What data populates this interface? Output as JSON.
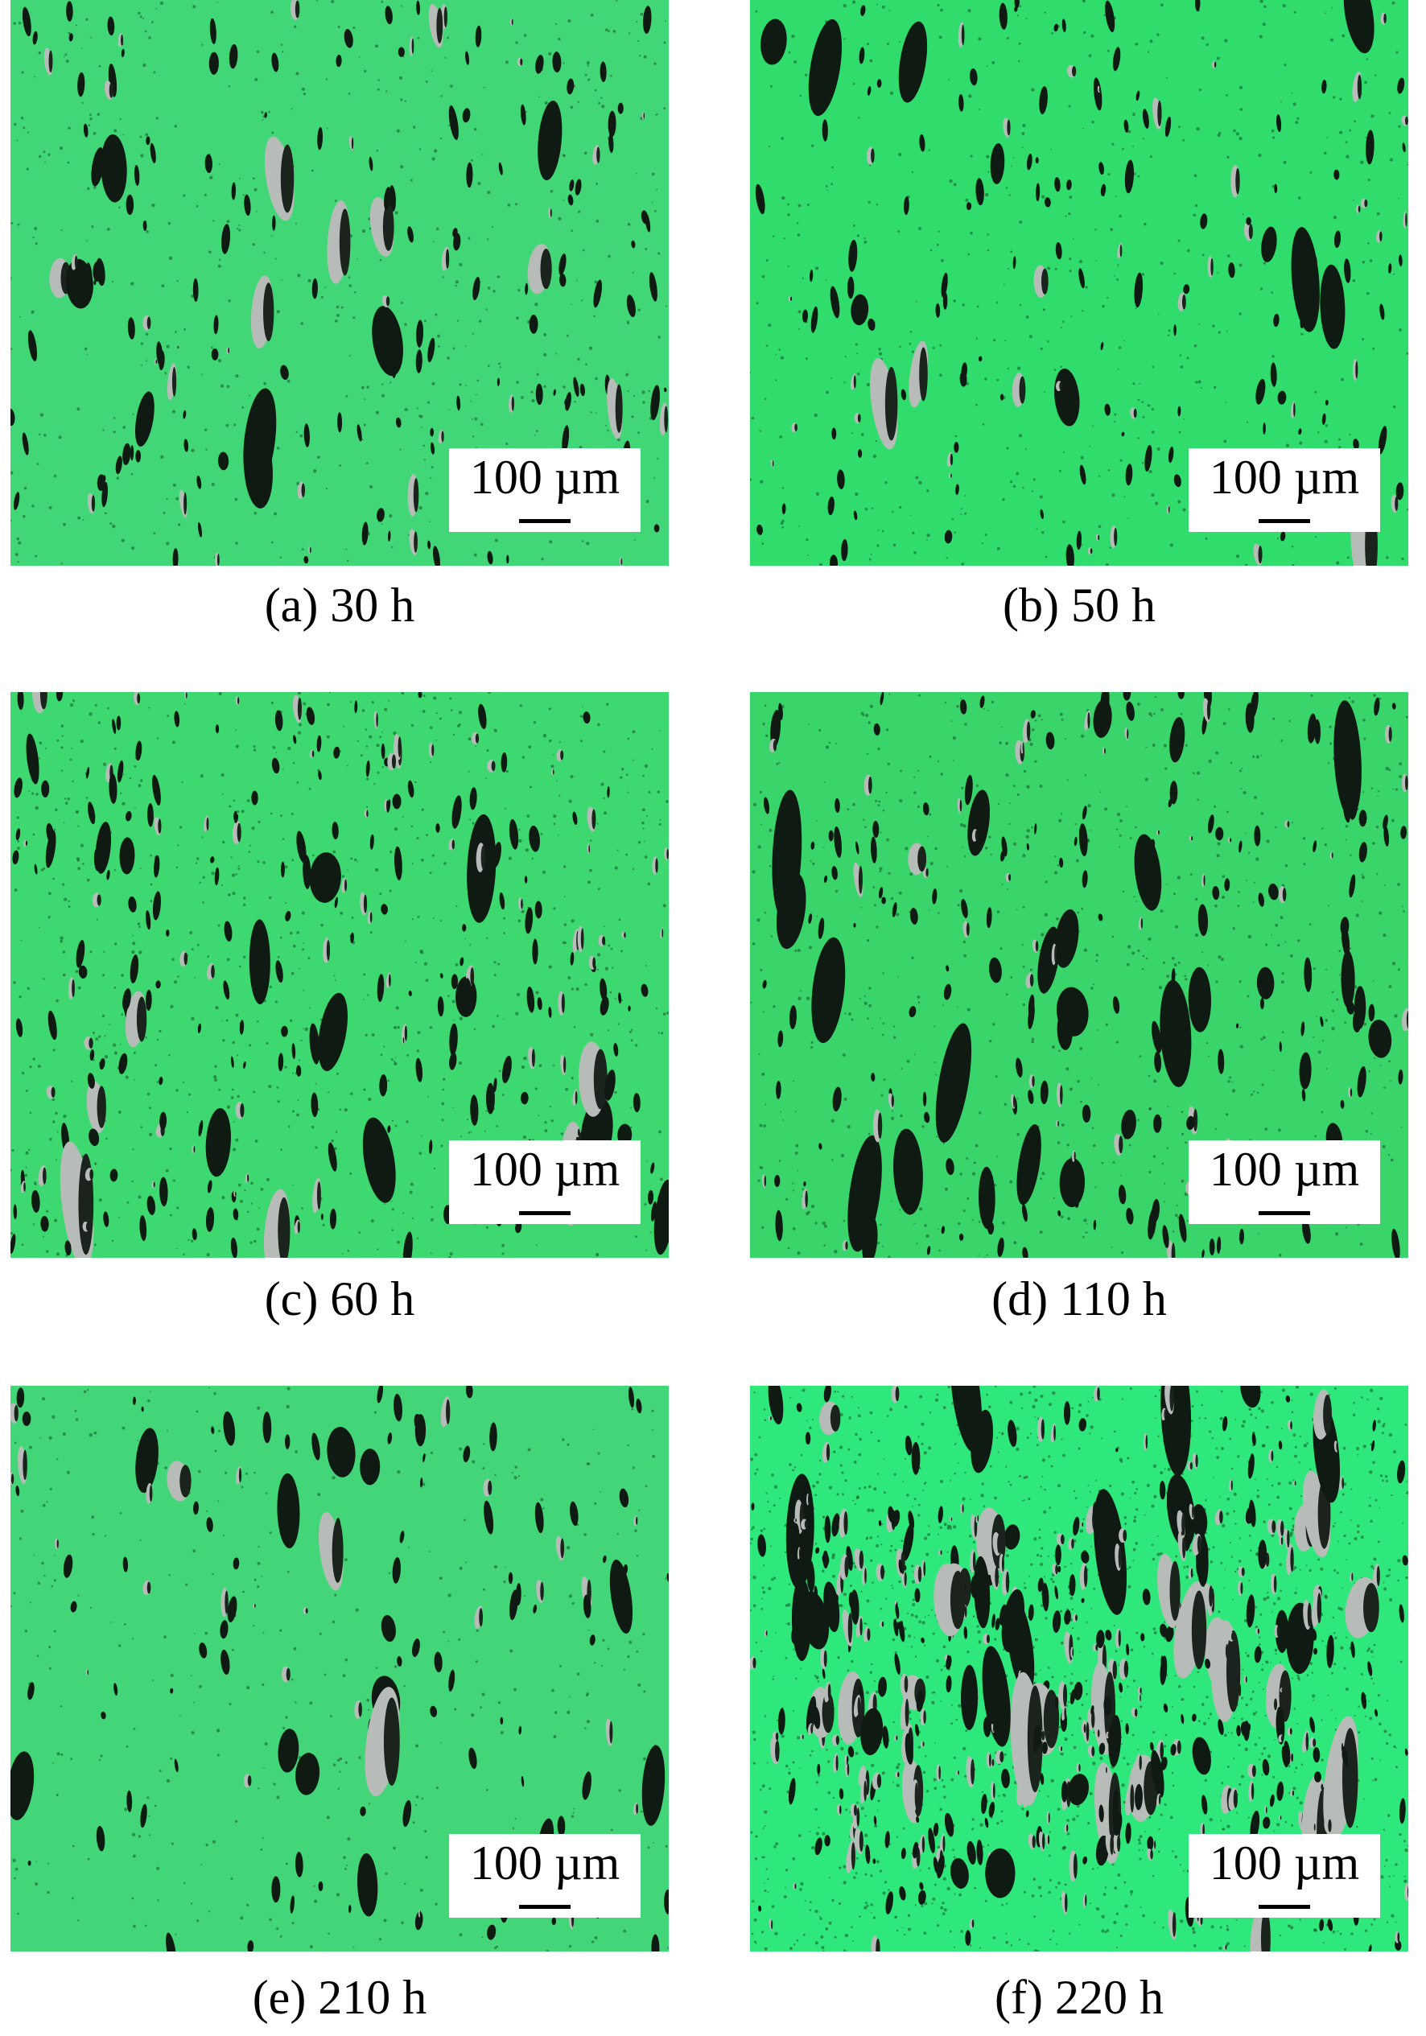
{
  "panels": [
    {
      "scale_bar": "100 µm",
      "caption": "(a) 30 h"
    },
    {
      "scale_bar": "100 µm",
      "caption": "(b) 50 h"
    },
    {
      "scale_bar": "100 µm",
      "caption": "(c) 60 h"
    },
    {
      "scale_bar": "100 µm",
      "caption": "(d) 110 h"
    },
    {
      "scale_bar": "100 µm",
      "caption": "(e) 210 h"
    },
    {
      "scale_bar": "100 µm",
      "caption": "(f) 220 h"
    }
  ]
}
